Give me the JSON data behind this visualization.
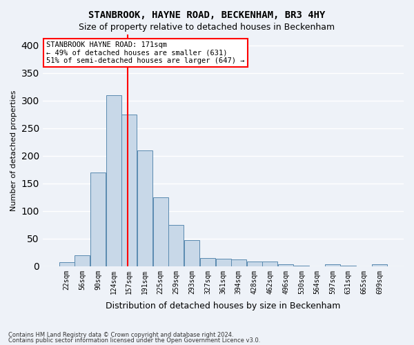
{
  "title1": "STANBROOK, HAYNE ROAD, BECKENHAM, BR3 4HY",
  "title2": "Size of property relative to detached houses in Beckenham",
  "xlabel": "Distribution of detached houses by size in Beckenham",
  "ylabel": "Number of detached properties",
  "footer1": "Contains HM Land Registry data © Crown copyright and database right 2024.",
  "footer2": "Contains public sector information licensed under the Open Government Licence v3.0.",
  "annotation_line1": "STANBROOK HAYNE ROAD: 171sqm",
  "annotation_line2": "← 49% of detached houses are smaller (631)",
  "annotation_line3": "51% of semi-detached houses are larger (647) →",
  "bar_left_edges": [
    22,
    56,
    90,
    124,
    157,
    191,
    225,
    259,
    293,
    327,
    361,
    394,
    428,
    462,
    496,
    530,
    564,
    597,
    631,
    665,
    699
  ],
  "bar_labels": [
    "22sqm",
    "56sqm",
    "90sqm",
    "124sqm",
    "157sqm",
    "191sqm",
    "225sqm",
    "259sqm",
    "293sqm",
    "327sqm",
    "361sqm",
    "394sqm",
    "428sqm",
    "462sqm",
    "496sqm",
    "530sqm",
    "564sqm",
    "597sqm",
    "631sqm",
    "665sqm",
    "699sqm"
  ],
  "bar_heights": [
    7,
    20,
    170,
    310,
    275,
    210,
    125,
    75,
    47,
    15,
    13,
    12,
    8,
    8,
    3,
    1,
    0,
    3,
    1,
    0,
    3
  ],
  "bar_color": "#c8d8e8",
  "bar_edge_color": "#5a8ab0",
  "vline_x": 171,
  "vline_color": "red",
  "ylim": [
    0,
    420
  ],
  "yticks": [
    0,
    50,
    100,
    150,
    200,
    250,
    300,
    350,
    400
  ],
  "bg_color": "#eef2f8",
  "plot_bg_color": "#eef2f8",
  "grid_color": "white",
  "annotation_box_color": "white",
  "annotation_box_edge": "red"
}
